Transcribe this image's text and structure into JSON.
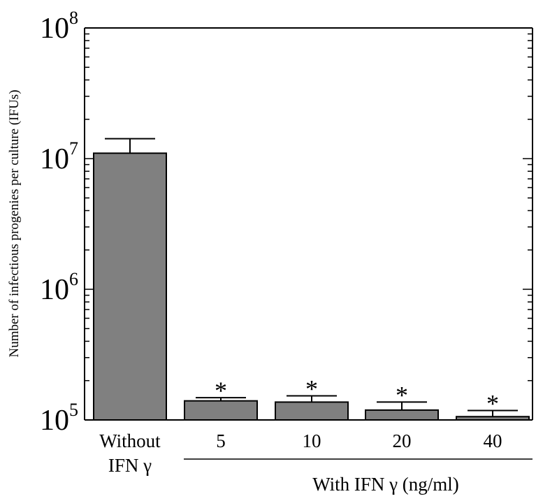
{
  "chart_data": {
    "type": "bar",
    "y_scale": "log",
    "ylim": [
      100000,
      100000000
    ],
    "ylabel": "Number of infectious progenies per culture (IFUs)",
    "y_tick_labels": [
      {
        "base": "10",
        "exp": "5"
      },
      {
        "base": "10",
        "exp": "6"
      },
      {
        "base": "10",
        "exp": "7"
      },
      {
        "base": "10",
        "exp": "8"
      }
    ],
    "categories": [
      {
        "line1": "Without",
        "line2": "IFN γ"
      },
      {
        "line1": "5",
        "line2": ""
      },
      {
        "line1": "10",
        "line2": ""
      },
      {
        "line1": "20",
        "line2": ""
      },
      {
        "line1": "40",
        "line2": ""
      }
    ],
    "group_label": "With IFN γ  (ng/ml)",
    "values": [
      11000000,
      140000,
      137000,
      119000,
      106000
    ],
    "error_upper": [
      14200000,
      148000,
      153000,
      137000,
      118000
    ],
    "significance": [
      "",
      "*",
      "*",
      "*",
      "*"
    ],
    "bar_color": "#808080",
    "grid": false
  }
}
